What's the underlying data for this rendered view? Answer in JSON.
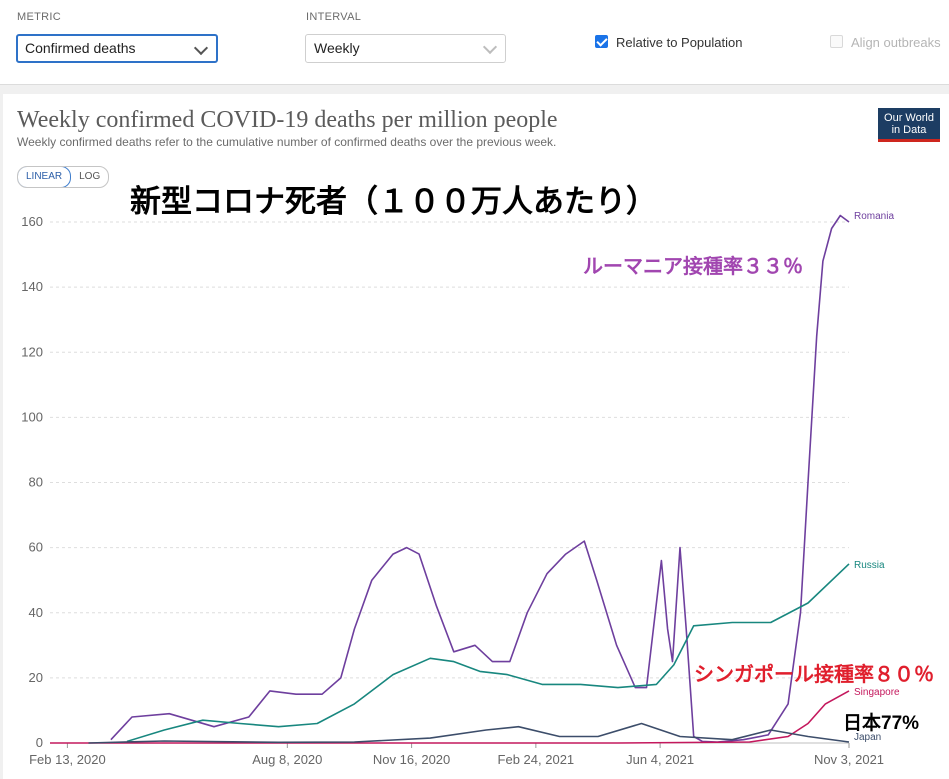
{
  "controls": {
    "metric_label": "METRIC",
    "metric_value": "Confirmed deaths",
    "interval_label": "INTERVAL",
    "interval_value": "Weekly",
    "relative_label": "Relative to Population",
    "relative_checked": true,
    "align_label": "Align outbreaks",
    "align_checked": false
  },
  "header": {
    "title": "Weekly confirmed COVID-19 deaths per million people",
    "subtitle": "Weekly confirmed deaths refer to the cumulative number of confirmed deaths over the previous week.",
    "logo_line1": "Our World",
    "logo_line2": "in Data",
    "scale_linear": "LINEAR",
    "scale_log": "LOG",
    "active_scale": "LINEAR"
  },
  "annotations": {
    "main": "新型コロナ死者（１００万人あたり）",
    "romania_rate": "ルーマニア接種率３３％",
    "singapore_rate": "シンガポール接種率８０％",
    "japan_rate": "日本77%"
  },
  "chart_data": {
    "type": "line",
    "title": "Weekly confirmed COVID-19 deaths per million people",
    "ylim": [
      0,
      160
    ],
    "yticks": [
      "0",
      "20",
      "40",
      "60",
      "80",
      "100",
      "120",
      "140",
      "160"
    ],
    "xticks": [
      "Feb 13, 2020",
      "Aug 8, 2020",
      "Nov 16, 2020",
      "Feb 24, 2021",
      "Jun 4, 2021",
      "Nov 3, 2021"
    ],
    "xtick_dates": [
      "2020-02-13",
      "2020-08-08",
      "2020-11-16",
      "2021-02-24",
      "2021-06-04",
      "2021-11-03"
    ],
    "x_range": [
      "2020-01-30",
      "2021-11-03"
    ],
    "grid": "horizontal-dashed",
    "series": [
      {
        "name": "Romania",
        "color": "#6e3f9e",
        "x": [
          "2020-03-19",
          "2020-04-05",
          "2020-05-05",
          "2020-06-10",
          "2020-07-08",
          "2020-07-25",
          "2020-08-15",
          "2020-09-05",
          "2020-09-20",
          "2020-10-01",
          "2020-10-15",
          "2020-11-01",
          "2020-11-12",
          "2020-11-22",
          "2020-12-06",
          "2020-12-20",
          "2021-01-06",
          "2021-01-20",
          "2021-02-03",
          "2021-02-17",
          "2021-03-05",
          "2021-03-20",
          "2021-04-04",
          "2021-04-14",
          "2021-04-30",
          "2021-05-15",
          "2021-05-24",
          "2021-06-05",
          "2021-06-10",
          "2021-06-14",
          "2021-06-20",
          "2021-06-25",
          "2021-07-01",
          "2021-07-08",
          "2021-07-20",
          "2021-08-10",
          "2021-08-30",
          "2021-09-15",
          "2021-09-25",
          "2021-10-01",
          "2021-10-08",
          "2021-10-13",
          "2021-10-20",
          "2021-10-27",
          "2021-11-03"
        ],
        "values": [
          1,
          8,
          9,
          5,
          8,
          16,
          15,
          15,
          20,
          35,
          50,
          58,
          60,
          58,
          42,
          28,
          30,
          25,
          25,
          40,
          52,
          58,
          62,
          50,
          30,
          17,
          17,
          56,
          35,
          25,
          60,
          35,
          2,
          0.5,
          0.3,
          1,
          2.5,
          12,
          40,
          80,
          125,
          148,
          158,
          162,
          160
        ]
      },
      {
        "name": "Russia",
        "color": "#18877f",
        "x": [
          "2020-04-01",
          "2020-05-01",
          "2020-06-01",
          "2020-07-01",
          "2020-08-01",
          "2020-09-01",
          "2020-10-01",
          "2020-11-01",
          "2020-12-01",
          "2020-12-20",
          "2021-01-10",
          "2021-02-01",
          "2021-03-01",
          "2021-04-01",
          "2021-05-01",
          "2021-06-01",
          "2021-06-15",
          "2021-07-01",
          "2021-08-01",
          "2021-09-01",
          "2021-10-01",
          "2021-11-03"
        ],
        "values": [
          0.5,
          4,
          7,
          6,
          5,
          6,
          12,
          21,
          26,
          25,
          22,
          21,
          18,
          18,
          17,
          18,
          24,
          36,
          37,
          37,
          43,
          55
        ]
      },
      {
        "name": "Singapore",
        "color": "#c4185d",
        "x": [
          "2020-01-30",
          "2020-06-01",
          "2020-12-01",
          "2021-05-01",
          "2021-08-15",
          "2021-09-15",
          "2021-10-01",
          "2021-10-15",
          "2021-11-03"
        ],
        "values": [
          0,
          0,
          0,
          0,
          0.3,
          2,
          6,
          12,
          16
        ]
      },
      {
        "name": "Japan",
        "color": "#3c4d6a",
        "x": [
          "2020-03-01",
          "2020-05-01",
          "2020-08-01",
          "2020-10-01",
          "2020-12-01",
          "2021-01-15",
          "2021-02-10",
          "2021-03-15",
          "2021-04-15",
          "2021-05-20",
          "2021-06-20",
          "2021-08-01",
          "2021-09-01",
          "2021-10-01",
          "2021-11-03"
        ],
        "values": [
          0,
          0.6,
          0.2,
          0.3,
          1.5,
          4,
          5,
          2,
          2,
          6,
          2,
          1,
          4,
          2,
          0.3
        ]
      }
    ]
  }
}
